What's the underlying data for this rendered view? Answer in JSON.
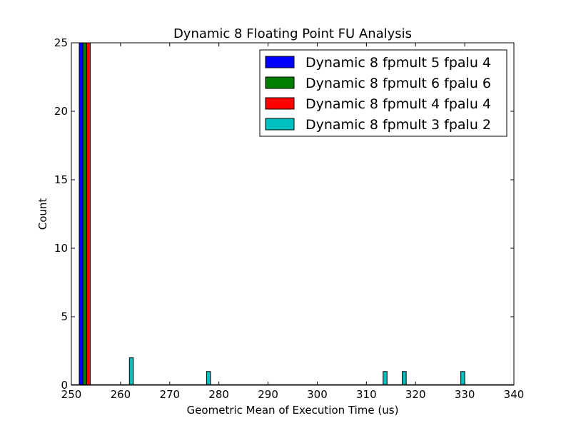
{
  "chart_data": {
    "type": "bar",
    "title": "Dynamic 8 Floating Point FU Analysis",
    "xlabel": "Geometric Mean of Execution Time (us)",
    "ylabel": "Count",
    "xlim": [
      250,
      340
    ],
    "ylim": [
      0,
      25
    ],
    "x_ticks": [
      250,
      260,
      270,
      280,
      290,
      300,
      310,
      320,
      330,
      340
    ],
    "y_ticks": [
      0,
      5,
      10,
      15,
      20,
      25
    ],
    "grid": false,
    "legend_position": "top-right",
    "series": [
      {
        "name": "Dynamic 8 fpmult 5 fpalu 4",
        "color": "#0000ff",
        "bins": [
          {
            "x0": 251.6,
            "x1": 252.35,
            "count": 25
          }
        ]
      },
      {
        "name": "Dynamic 8 fpmult 6 fpalu 6",
        "color": "#008000",
        "bins": [
          {
            "x0": 252.35,
            "x1": 253.1,
            "count": 25
          }
        ]
      },
      {
        "name": "Dynamic 8 fpmult 4 fpalu 4",
        "color": "#ff0000",
        "bins": [
          {
            "x0": 253.1,
            "x1": 253.85,
            "count": 25
          }
        ]
      },
      {
        "name": "Dynamic 8 fpmult 3 fpalu 2",
        "color": "#00bfbf",
        "bins": [
          {
            "x0": 261.8,
            "x1": 262.6,
            "count": 2
          },
          {
            "x0": 277.5,
            "x1": 278.3,
            "count": 1
          },
          {
            "x0": 313.4,
            "x1": 314.2,
            "count": 1
          },
          {
            "x0": 317.3,
            "x1": 318.1,
            "count": 1
          },
          {
            "x0": 329.2,
            "x1": 330.0,
            "count": 1
          }
        ]
      }
    ]
  }
}
